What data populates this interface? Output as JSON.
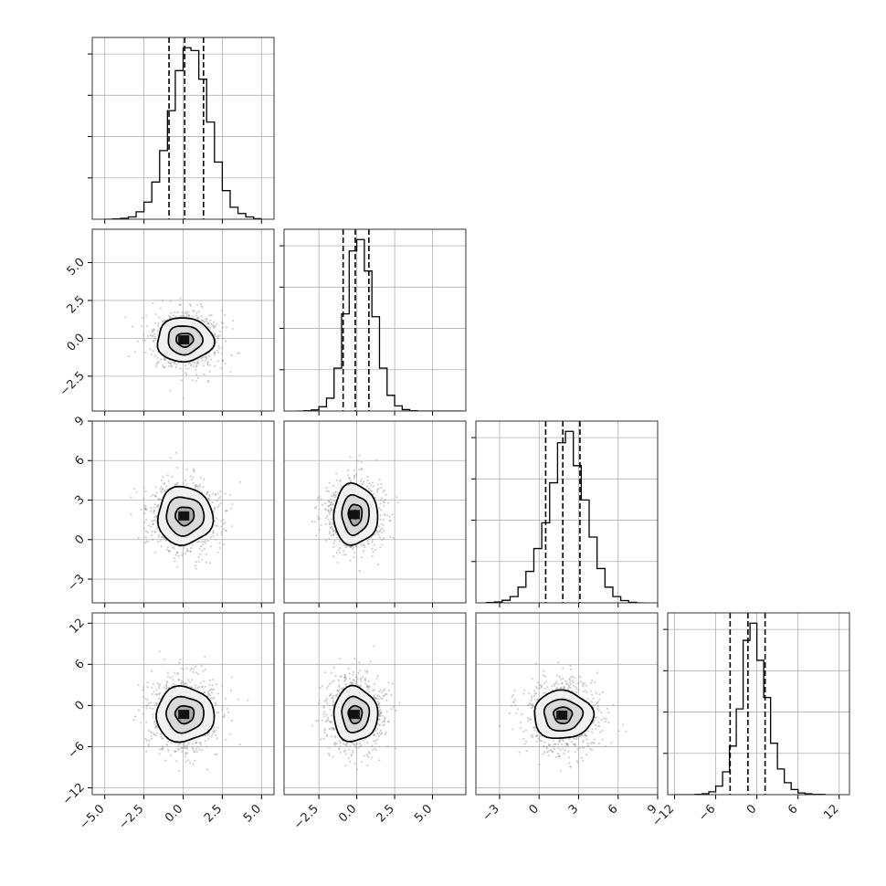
{
  "chart_data": {
    "type": "corner",
    "colors": {
      "line": "#000000",
      "grid": "#b0b0b0",
      "frame": "#333333"
    },
    "grid": true,
    "parameters": [
      {
        "range": [
          -5.8,
          5.8
        ],
        "ticks": [
          -5.0,
          -2.5,
          0.0,
          2.5,
          5.0
        ],
        "tick_labels": [
          "−5.0",
          "−2.5",
          "0.0",
          "2.5",
          "5.0"
        ],
        "mean": 0.1,
        "sd": 1.05,
        "quantiles": [
          -0.9,
          0.1,
          1.3
        ]
      },
      {
        "range": [
          -4.8,
          7.2
        ],
        "ticks": [
          -2.5,
          0.0,
          2.5,
          5.0
        ],
        "tick_labels": [
          "−2.5",
          "0.0",
          "2.5",
          "5.0"
        ],
        "mean": -0.1,
        "sd": 0.9,
        "quantiles": [
          -0.9,
          -0.1,
          0.8
        ]
      },
      {
        "range": [
          -4.8,
          9.0
        ],
        "ticks": [
          -3,
          0,
          3,
          6,
          9
        ],
        "tick_labels": [
          "−3",
          "0",
          "3",
          "6",
          "9"
        ],
        "mean": 1.8,
        "sd": 1.3,
        "quantiles": [
          0.5,
          1.8,
          3.1
        ]
      },
      {
        "range": [
          -13.0,
          13.5
        ],
        "ticks": [
          -12,
          -6,
          0,
          6,
          12
        ],
        "tick_labels": [
          "−12",
          "−6",
          "0",
          "6",
          "12"
        ],
        "mean": -1.3,
        "sd": 2.6,
        "quantiles": [
          -3.9,
          -1.3,
          1.2
        ]
      }
    ],
    "histograms": [
      {
        "param": 0,
        "edges": [
          -5.0,
          -4.5,
          -4.0,
          -3.5,
          -3.0,
          -2.5,
          -2.0,
          -1.5,
          -1.0,
          -0.5,
          0.0,
          0.5,
          1.0,
          1.5,
          2.0,
          2.5,
          3.0,
          3.5,
          4.0,
          4.5,
          5.0
        ],
        "counts": [
          0,
          1,
          3,
          8,
          26,
          60,
          130,
          240,
          380,
          520,
          600,
          590,
          490,
          340,
          200,
          100,
          42,
          20,
          8,
          2
        ]
      },
      {
        "param": 1,
        "edges": [
          -4.0,
          -3.5,
          -3.0,
          -2.5,
          -2.0,
          -1.5,
          -1.0,
          -0.5,
          0.0,
          0.5,
          1.0,
          1.5,
          2.0,
          2.5,
          3.0,
          3.5,
          4.0,
          4.5,
          5.0,
          5.5,
          6.0,
          6.5,
          7.0
        ],
        "counts": [
          0,
          1,
          4,
          15,
          45,
          150,
          340,
          560,
          600,
          490,
          330,
          150,
          55,
          18,
          5,
          1,
          0,
          0,
          0,
          0,
          0,
          0
        ]
      },
      {
        "param": 2,
        "edges": [
          -4.0,
          -3.4,
          -2.8,
          -2.2,
          -1.6,
          -1.0,
          -0.4,
          0.2,
          0.8,
          1.4,
          2.0,
          2.6,
          3.2,
          3.8,
          4.4,
          5.0,
          5.6,
          6.2,
          6.8,
          7.4,
          8.0
        ],
        "counts": [
          1,
          3,
          9,
          22,
          55,
          110,
          190,
          280,
          420,
          560,
          600,
          480,
          360,
          230,
          120,
          55,
          22,
          8,
          2,
          0
        ]
      },
      {
        "param": 3,
        "edges": [
          -12.0,
          -11.0,
          -10.0,
          -9.0,
          -8.0,
          -7.0,
          -6.0,
          -5.0,
          -4.0,
          -3.0,
          -2.0,
          -1.0,
          0.0,
          1.0,
          2.0,
          3.0,
          4.0,
          5.0,
          6.0,
          7.0,
          8.0,
          9.0,
          10.0
        ],
        "counts": [
          0,
          0,
          0,
          1,
          3,
          10,
          30,
          80,
          170,
          300,
          540,
          600,
          470,
          340,
          180,
          90,
          42,
          18,
          6,
          3,
          1,
          1
        ]
      }
    ],
    "pairs": [
      {
        "x": 0,
        "y": 1,
        "center": [
          0.1,
          -0.1
        ],
        "levels": [
          {
            "rx": 0.55,
            "ry": 0.45
          },
          {
            "rx": 1.1,
            "ry": 0.95
          },
          {
            "rx": 1.8,
            "ry": 1.45
          }
        ]
      },
      {
        "x": 0,
        "y": 2,
        "center": [
          0.1,
          1.8
        ],
        "levels": [
          {
            "rx": 0.6,
            "ry": 0.7
          },
          {
            "rx": 1.2,
            "ry": 1.45
          },
          {
            "rx": 1.75,
            "ry": 2.2
          }
        ]
      },
      {
        "x": 0,
        "y": 3,
        "center": [
          0.1,
          -1.3
        ],
        "levels": [
          {
            "rx": 0.6,
            "ry": 1.3
          },
          {
            "rx": 1.2,
            "ry": 2.6
          },
          {
            "rx": 1.85,
            "ry": 4.0
          }
        ]
      },
      {
        "x": 1,
        "y": 2,
        "center": [
          -0.1,
          1.9
        ],
        "levels": [
          {
            "rx": 0.45,
            "ry": 0.8
          },
          {
            "rx": 0.9,
            "ry": 1.5
          },
          {
            "rx": 1.45,
            "ry": 2.3
          }
        ]
      },
      {
        "x": 1,
        "y": 3,
        "center": [
          -0.1,
          -1.3
        ],
        "levels": [
          {
            "rx": 0.45,
            "ry": 1.3
          },
          {
            "rx": 0.9,
            "ry": 2.6
          },
          {
            "rx": 1.45,
            "ry": 4.0
          }
        ]
      },
      {
        "x": 2,
        "y": 3,
        "center": [
          1.8,
          -1.4
        ],
        "levels": [
          {
            "rx": 0.7,
            "ry": 1.2
          },
          {
            "rx": 1.45,
            "ry": 2.3
          },
          {
            "rx": 2.25,
            "ry": 3.5
          }
        ]
      }
    ]
  }
}
